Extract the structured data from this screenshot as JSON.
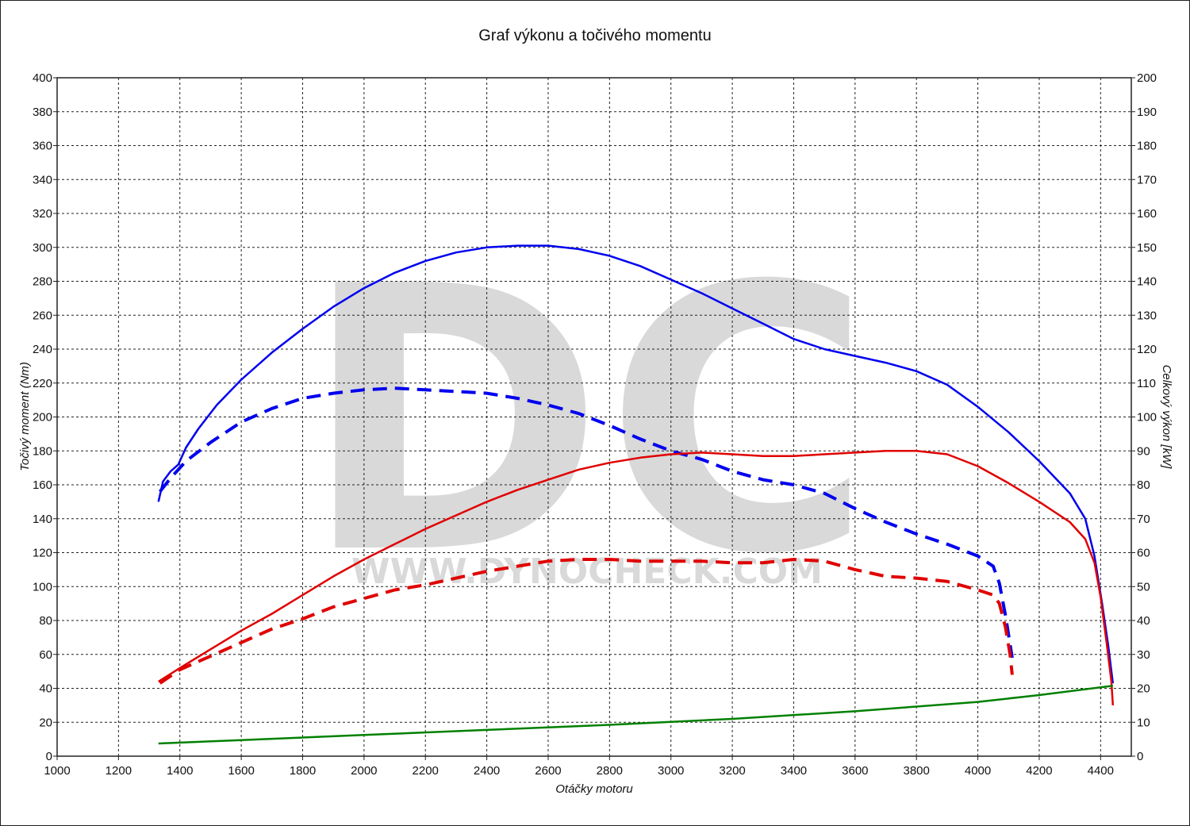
{
  "chart_data": {
    "type": "line",
    "title": "Graf výkonu a točivého momentu",
    "xlabel": "Otáčky motoru",
    "ylabel_left": "Točivý moment (Nm)",
    "ylabel_right": "Celkový výkon [kW]",
    "xlim": [
      1000,
      4500
    ],
    "ylim_left": [
      0,
      400
    ],
    "ylim_right": [
      0,
      200
    ],
    "x_ticks": [
      1000,
      1200,
      1400,
      1600,
      1800,
      2000,
      2200,
      2400,
      2600,
      2800,
      3000,
      3200,
      3400,
      3600,
      3800,
      4000,
      4200,
      4400
    ],
    "y_ticks_left": [
      0,
      20,
      40,
      60,
      80,
      100,
      120,
      140,
      160,
      180,
      200,
      220,
      240,
      260,
      280,
      300,
      320,
      340,
      360,
      380,
      400
    ],
    "y_ticks_right": [
      0,
      10,
      20,
      30,
      40,
      50,
      60,
      70,
      80,
      90,
      100,
      110,
      120,
      130,
      140,
      150,
      160,
      170,
      180,
      190,
      200
    ],
    "grid": true,
    "watermark": {
      "big": "DC",
      "url": "WWW.DYNOCHECK.COM"
    },
    "series": [
      {
        "key": "torque_tuned",
        "axis": "left",
        "color": "#0000ee",
        "dash": false,
        "points": [
          [
            1330,
            150
          ],
          [
            1345,
            162
          ],
          [
            1370,
            168
          ],
          [
            1395,
            172
          ],
          [
            1420,
            182
          ],
          [
            1460,
            193
          ],
          [
            1520,
            207
          ],
          [
            1600,
            222
          ],
          [
            1700,
            238
          ],
          [
            1800,
            252
          ],
          [
            1900,
            265
          ],
          [
            2000,
            276
          ],
          [
            2100,
            285
          ],
          [
            2200,
            292
          ],
          [
            2300,
            297
          ],
          [
            2400,
            300
          ],
          [
            2500,
            301
          ],
          [
            2600,
            301
          ],
          [
            2700,
            299
          ],
          [
            2800,
            295
          ],
          [
            2900,
            289
          ],
          [
            3000,
            281
          ],
          [
            3100,
            273
          ],
          [
            3200,
            264
          ],
          [
            3300,
            255
          ],
          [
            3400,
            246
          ],
          [
            3500,
            240
          ],
          [
            3600,
            236
          ],
          [
            3700,
            232
          ],
          [
            3800,
            227
          ],
          [
            3900,
            219
          ],
          [
            4000,
            206
          ],
          [
            4100,
            191
          ],
          [
            4200,
            174
          ],
          [
            4300,
            155
          ],
          [
            4350,
            140
          ],
          [
            4380,
            118
          ],
          [
            4405,
            90
          ],
          [
            4425,
            65
          ],
          [
            4440,
            43
          ]
        ]
      },
      {
        "key": "torque_stock",
        "axis": "left",
        "color": "#0000ee",
        "dash": true,
        "points": [
          [
            1335,
            156
          ],
          [
            1370,
            164
          ],
          [
            1420,
            174
          ],
          [
            1500,
            185
          ],
          [
            1600,
            197
          ],
          [
            1700,
            205
          ],
          [
            1800,
            211
          ],
          [
            1900,
            214
          ],
          [
            2000,
            216
          ],
          [
            2100,
            217
          ],
          [
            2200,
            216
          ],
          [
            2300,
            215
          ],
          [
            2400,
            214
          ],
          [
            2500,
            211
          ],
          [
            2600,
            207
          ],
          [
            2700,
            202
          ],
          [
            2800,
            195
          ],
          [
            2900,
            187
          ],
          [
            3000,
            180
          ],
          [
            3100,
            175
          ],
          [
            3200,
            168
          ],
          [
            3300,
            163
          ],
          [
            3400,
            160
          ],
          [
            3500,
            155
          ],
          [
            3600,
            146
          ],
          [
            3700,
            138
          ],
          [
            3800,
            131
          ],
          [
            3900,
            125
          ],
          [
            4000,
            118
          ],
          [
            4050,
            112
          ],
          [
            4070,
            102
          ],
          [
            4090,
            83
          ],
          [
            4105,
            66
          ],
          [
            4112,
            58
          ]
        ]
      },
      {
        "key": "power_tuned",
        "axis": "right",
        "color": "#e00000",
        "dash": false,
        "points": [
          [
            1330,
            22
          ],
          [
            1400,
            26
          ],
          [
            1500,
            31.5
          ],
          [
            1600,
            37
          ],
          [
            1700,
            42
          ],
          [
            1800,
            47.5
          ],
          [
            1900,
            53
          ],
          [
            2000,
            58
          ],
          [
            2100,
            62.5
          ],
          [
            2200,
            67
          ],
          [
            2300,
            71
          ],
          [
            2400,
            75
          ],
          [
            2500,
            78.5
          ],
          [
            2600,
            81.5
          ],
          [
            2700,
            84.5
          ],
          [
            2800,
            86.5
          ],
          [
            2900,
            88
          ],
          [
            3000,
            89
          ],
          [
            3100,
            89.5
          ],
          [
            3200,
            89
          ],
          [
            3300,
            88.5
          ],
          [
            3400,
            88.5
          ],
          [
            3500,
            89
          ],
          [
            3600,
            89.5
          ],
          [
            3700,
            90
          ],
          [
            3800,
            90
          ],
          [
            3900,
            89
          ],
          [
            4000,
            85.5
          ],
          [
            4100,
            80.5
          ],
          [
            4200,
            75
          ],
          [
            4300,
            69
          ],
          [
            4350,
            64
          ],
          [
            4380,
            57
          ],
          [
            4400,
            47
          ],
          [
            4420,
            33
          ],
          [
            4435,
            22
          ],
          [
            4440,
            15
          ]
        ]
      },
      {
        "key": "power_stock",
        "axis": "right",
        "color": "#e00000",
        "dash": true,
        "points": [
          [
            1335,
            21.5
          ],
          [
            1400,
            25.5
          ],
          [
            1500,
            29.5
          ],
          [
            1600,
            33.5
          ],
          [
            1700,
            37.5
          ],
          [
            1800,
            40.5
          ],
          [
            1900,
            44
          ],
          [
            2000,
            46.5
          ],
          [
            2100,
            49
          ],
          [
            2200,
            50.5
          ],
          [
            2300,
            52.5
          ],
          [
            2400,
            54.5
          ],
          [
            2500,
            56
          ],
          [
            2600,
            57.5
          ],
          [
            2700,
            58
          ],
          [
            2800,
            58
          ],
          [
            2900,
            57.5
          ],
          [
            3000,
            57.5
          ],
          [
            3100,
            57.5
          ],
          [
            3200,
            57
          ],
          [
            3300,
            57
          ],
          [
            3400,
            58
          ],
          [
            3500,
            57.5
          ],
          [
            3600,
            55
          ],
          [
            3700,
            53
          ],
          [
            3800,
            52.5
          ],
          [
            3900,
            51.5
          ],
          [
            4000,
            49
          ],
          [
            4050,
            47.5
          ],
          [
            4070,
            45
          ],
          [
            4090,
            38
          ],
          [
            4105,
            30
          ],
          [
            4112,
            24
          ]
        ]
      },
      {
        "key": "loss",
        "axis": "left",
        "color": "#008000",
        "dash": false,
        "points": [
          [
            1330,
            7.5
          ],
          [
            1600,
            9.5
          ],
          [
            2000,
            12.5
          ],
          [
            2400,
            15.5
          ],
          [
            2800,
            18.5
          ],
          [
            3200,
            22
          ],
          [
            3600,
            26.5
          ],
          [
            4000,
            32
          ],
          [
            4200,
            36
          ],
          [
            4440,
            41.5
          ]
        ]
      }
    ]
  }
}
